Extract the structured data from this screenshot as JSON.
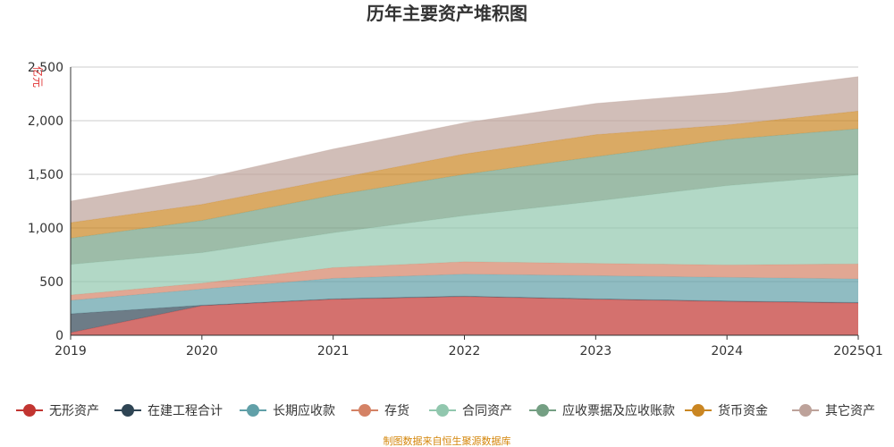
{
  "chart_data": {
    "type": "area",
    "title": "历年主要资产堆积图",
    "unit_label": "亿元",
    "stacked": true,
    "categories": [
      "2019",
      "2020",
      "2021",
      "2022",
      "2023",
      "2024",
      "2025Q1"
    ],
    "ylim": [
      0,
      2500
    ],
    "yticks": [
      "0",
      "500",
      "1,000",
      "1,500",
      "2,000",
      "2,500"
    ],
    "ytick_values": [
      0,
      500,
      1000,
      1500,
      2000,
      2500
    ],
    "grid": true,
    "legend_position": "bottom",
    "series": [
      {
        "name": "无形资产",
        "color": "#c23531",
        "values": [
          25,
          275,
          335,
          360,
          335,
          315,
          300
        ]
      },
      {
        "name": "在建工程合计",
        "color": "#2f4554",
        "values": [
          175,
          5,
          5,
          5,
          5,
          5,
          5
        ]
      },
      {
        "name": "长期应收款",
        "color": "#61a0a8",
        "values": [
          125,
          150,
          190,
          205,
          215,
          220,
          220
        ]
      },
      {
        "name": "存货",
        "color": "#d48265",
        "values": [
          50,
          55,
          100,
          115,
          115,
          115,
          140
        ]
      },
      {
        "name": "合同资产",
        "color": "#91c7ae",
        "values": [
          285,
          285,
          325,
          430,
          580,
          740,
          830
        ]
      },
      {
        "name": "应收票据及应收账款",
        "color": "#749f83",
        "values": [
          245,
          300,
          350,
          385,
          415,
          430,
          430
        ]
      },
      {
        "name": "货币资金",
        "color": "#ca8622",
        "values": [
          145,
          150,
          150,
          190,
          205,
          135,
          165
        ]
      },
      {
        "name": "其它资产",
        "color": "#bda29a",
        "values": [
          200,
          240,
          280,
          290,
          290,
          300,
          320
        ]
      }
    ]
  },
  "footer": {
    "source": "制图数据来自恒生聚源数据库"
  }
}
